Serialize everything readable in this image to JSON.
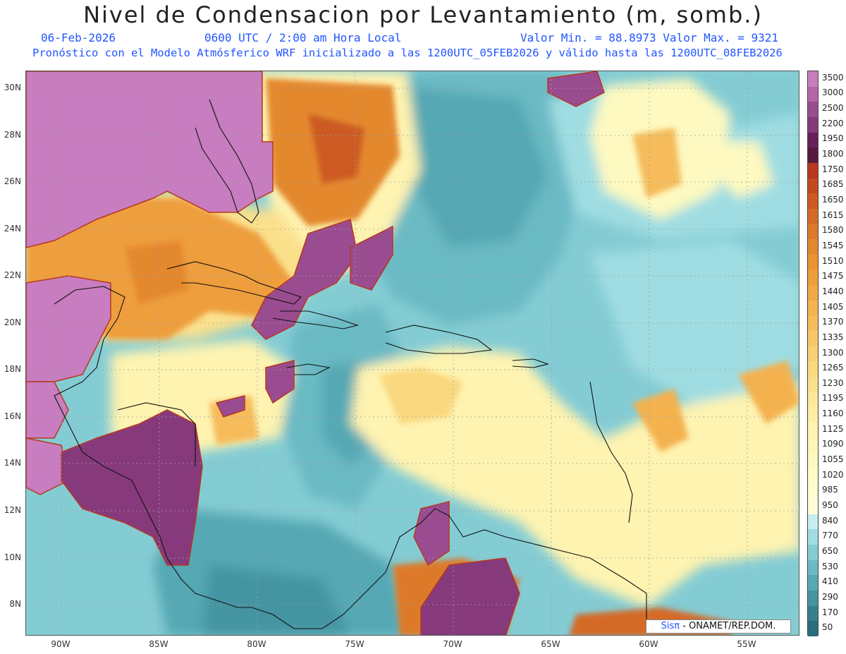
{
  "header": {
    "title": "Nivel de Condensacion por Levantamiento (m, somb.)",
    "date": "06-Feb-2026",
    "time": "0600 UTC / 2:00 am Hora Local",
    "min_max": "Valor Min. = 88.8973  Valor Max. = 9321",
    "model_info": "Pronóstico con el Modelo Atmósferico WRF inicializado a las 1200UTC_05FEB2026 y válido hasta las  1200UTC_08FEB2026"
  },
  "axes": {
    "lat_labels": [
      "30N",
      "28N",
      "26N",
      "24N",
      "22N",
      "20N",
      "18N",
      "16N",
      "14N",
      "12N",
      "10N",
      "8N"
    ],
    "lon_labels": [
      "90W",
      "85W",
      "80W",
      "75W",
      "70W",
      "65W",
      "60W",
      "55W"
    ]
  },
  "colorbar": {
    "levels": [
      "3500",
      "3000",
      "2500",
      "2200",
      "1950",
      "1800",
      "1750",
      "1685",
      "1650",
      "1615",
      "1580",
      "1545",
      "1510",
      "1475",
      "1440",
      "1405",
      "1370",
      "1335",
      "1300",
      "1265",
      "1230",
      "1195",
      "1160",
      "1125",
      "1090",
      "1055",
      "1020",
      "985",
      "950",
      "840",
      "770",
      "650",
      "530",
      "410",
      "290",
      "170",
      "50"
    ],
    "colors": [
      "#c77dbf",
      "#b664aa",
      "#9a4c90",
      "#863a7c",
      "#6a1f5a",
      "#5a1a40",
      "#b8381e",
      "#c24a1f",
      "#cc5a22",
      "#d46a26",
      "#dc7a2a",
      "#e4882e",
      "#ea9434",
      "#ee9e3c",
      "#f2a846",
      "#f4b250",
      "#f6bc5c",
      "#f8c668",
      "#f9cf74",
      "#fad880",
      "#fbe08c",
      "#fce898",
      "#fdeea4",
      "#fef3b0",
      "#fef6b8",
      "#fef9c0",
      "#fffcc8",
      "#fffcd0",
      "#fefdd8",
      "#c6eef0",
      "#9fdde2",
      "#84ccd4",
      "#6abac4",
      "#55a8b4",
      "#4494a2",
      "#35808f",
      "#2a6e7e"
    ]
  },
  "credit": {
    "brand": "Sisπ",
    "text": " - ONAMET/REP.DOM."
  }
}
